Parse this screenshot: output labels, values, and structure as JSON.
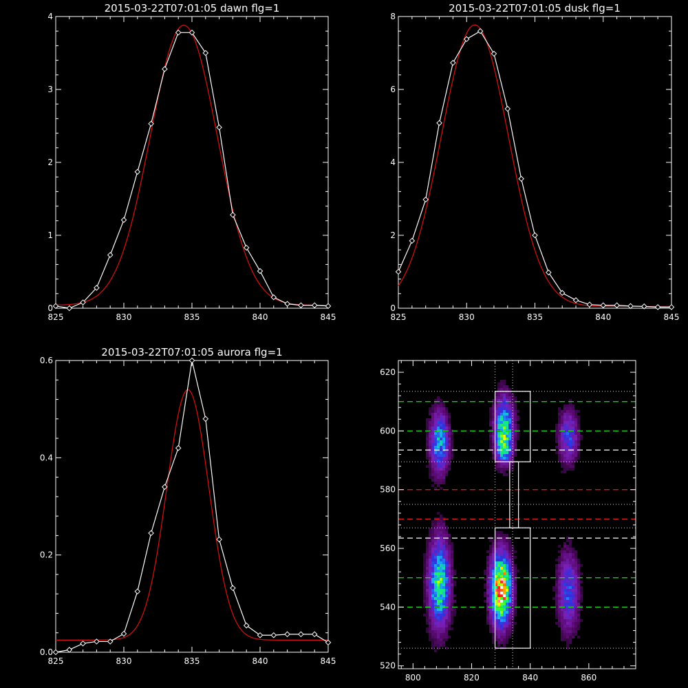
{
  "colors": {
    "background": "#000000",
    "axis": "#ffffff",
    "observed": "#ffffff",
    "fit": "#d01010"
  },
  "chart_data": [
    {
      "type": "line",
      "title": "2015-03-22T07:01:05 dawn flg=1",
      "xlim": [
        825,
        845
      ],
      "ylim": [
        0,
        4
      ],
      "x_ticks": [
        "825",
        "830",
        "835",
        "840",
        "845"
      ],
      "y_ticks": [
        "0",
        "1",
        "2",
        "3",
        "4"
      ],
      "series": [
        {
          "marker": "diamond",
          "color": "#ffffff",
          "x": [
            825,
            826,
            827,
            828,
            829,
            830,
            831,
            832,
            833,
            834,
            835,
            836,
            837,
            838,
            839,
            840,
            841,
            842,
            843,
            844,
            845
          ],
          "y": [
            0.03,
            0.0,
            0.08,
            0.28,
            0.73,
            1.21,
            1.87,
            2.53,
            3.28,
            3.78,
            3.78,
            3.5,
            2.48,
            1.28,
            0.83,
            0.51,
            0.15,
            0.06,
            0.04,
            0.04,
            0.03
          ]
        },
        {
          "marker": "none",
          "color": "#d01010",
          "gaussian": {
            "amplitude": 3.84,
            "center": 834.4,
            "sigma": 2.45,
            "offset": 0.04
          }
        }
      ]
    },
    {
      "type": "line",
      "title": "2015-03-22T07:01:05 dusk flg=1",
      "xlim": [
        825,
        845
      ],
      "ylim": [
        0,
        8
      ],
      "x_ticks": [
        "825",
        "830",
        "835",
        "840",
        "845"
      ],
      "y_ticks": [
        "0",
        "2",
        "4",
        "6",
        "8"
      ],
      "series": [
        {
          "marker": "diamond",
          "color": "#ffffff",
          "x": [
            825,
            826,
            827,
            828,
            829,
            830,
            831,
            832,
            833,
            834,
            835,
            836,
            837,
            838,
            839,
            840,
            841,
            842,
            843,
            844,
            845
          ],
          "y": [
            1.0,
            1.85,
            2.98,
            5.08,
            6.73,
            7.38,
            7.6,
            6.98,
            5.47,
            3.55,
            2.0,
            0.98,
            0.42,
            0.22,
            0.1,
            0.08,
            0.08,
            0.06,
            0.05,
            0.03,
            0.03
          ]
        },
        {
          "marker": "none",
          "color": "#d01010",
          "gaussian": {
            "amplitude": 7.72,
            "center": 830.6,
            "sigma": 2.45,
            "offset": 0.05
          }
        }
      ]
    },
    {
      "type": "line",
      "title": "2015-03-22T07:01:05 aurora flg=1",
      "xlim": [
        825,
        845
      ],
      "ylim": [
        0,
        0.6
      ],
      "x_ticks": [
        "825",
        "830",
        "835",
        "840",
        "845"
      ],
      "y_ticks": [
        "0.0",
        "0.2",
        "0.4",
        "0.6"
      ],
      "series": [
        {
          "marker": "diamond",
          "color": "#ffffff",
          "x": [
            825,
            826,
            827,
            828,
            829,
            830,
            831,
            832,
            833,
            834,
            835,
            836,
            837,
            838,
            839,
            840,
            841,
            842,
            843,
            844,
            845
          ],
          "y": [
            0.0,
            0.005,
            0.018,
            0.022,
            0.022,
            0.038,
            0.125,
            0.245,
            0.34,
            0.42,
            0.6,
            0.48,
            0.232,
            0.132,
            0.055,
            0.035,
            0.035,
            0.037,
            0.037,
            0.037,
            0.02
          ]
        },
        {
          "marker": "none",
          "color": "#d01010",
          "gaussian": {
            "amplitude": 0.515,
            "center": 834.7,
            "sigma": 1.55,
            "offset": 0.025
          }
        }
      ]
    },
    {
      "type": "heatmap",
      "xlim": [
        795,
        876
      ],
      "ylim": [
        519,
        624
      ],
      "x_ticks": [
        "800",
        "820",
        "840",
        "860"
      ],
      "y_ticks": [
        "520",
        "540",
        "560",
        "580",
        "600",
        "620"
      ],
      "colormap": [
        "#000000",
        "#5a0a70",
        "#7a20b8",
        "#2f2fe0",
        "#1aa0ff",
        "#10e0a0",
        "#30ff30",
        "#ffff00",
        "#ff0000",
        "#ffffff"
      ],
      "blobs": [
        {
          "x": 809,
          "y": 596,
          "sx": 2.2,
          "sy": 7,
          "amp": 0.45
        },
        {
          "x": 809,
          "y": 548,
          "sx": 2.4,
          "sy": 10,
          "amp": 0.6
        },
        {
          "x": 831,
          "y": 601,
          "sx": 2.2,
          "sy": 7,
          "amp": 0.55
        },
        {
          "x": 831,
          "y": 594,
          "sx": 1.6,
          "sy": 3,
          "amp": 0.35
        },
        {
          "x": 830,
          "y": 546,
          "sx": 2.3,
          "sy": 8,
          "amp": 0.95
        },
        {
          "x": 853,
          "y": 598,
          "sx": 2.2,
          "sy": 6,
          "amp": 0.33
        },
        {
          "x": 853,
          "y": 545,
          "sx": 2.4,
          "sy": 9,
          "amp": 0.33
        }
      ],
      "green_dashed_y": [
        610,
        600,
        550,
        540
      ],
      "white_dashed_y": [
        593.5,
        563.5
      ],
      "red_dashed_y": [
        580,
        570
      ],
      "dotted_y": [
        613.5,
        589.5,
        575,
        567,
        526
      ],
      "dotted_x": [
        828,
        834
      ],
      "boxes": [
        {
          "x0": 828,
          "x1": 840,
          "y0": 589.5,
          "y1": 613.5
        },
        {
          "x0": 833,
          "x1": 836,
          "y0": 567,
          "y1": 589.5
        },
        {
          "x0": 828,
          "x1": 840,
          "y0": 526,
          "y1": 567
        }
      ]
    }
  ]
}
